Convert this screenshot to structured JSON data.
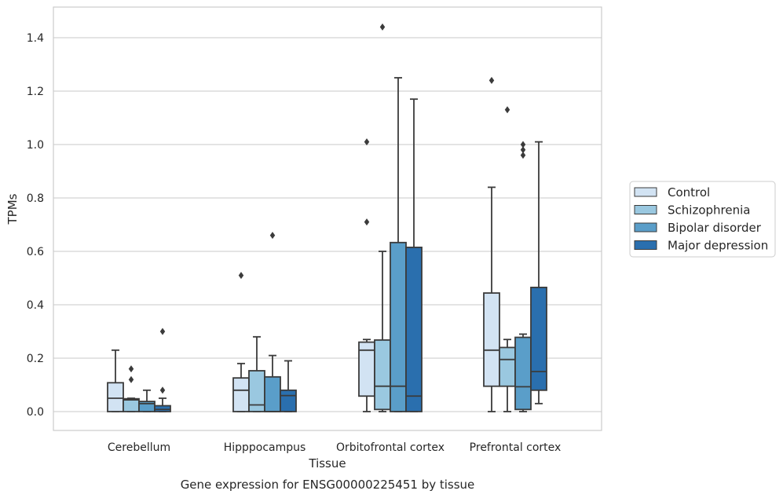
{
  "chart_data": {
    "type": "boxplot",
    "title": "",
    "xlabel": "Tissue",
    "ylabel": "TPMs",
    "caption": "Gene expression for ENSG00000225451 by tissue",
    "ylim": [
      -0.07,
      1.52
    ],
    "yticks": [
      "0.0",
      "0.2",
      "0.4",
      "0.6",
      "0.8",
      "1.0",
      "1.2",
      "1.4"
    ],
    "grid": "horizontal",
    "legend_position": "right",
    "categories": [
      "Cerebellum",
      "Hipppocampus",
      "Orbitofrontal cortex",
      "Prefrontal cortex"
    ],
    "series": [
      {
        "name": "Control",
        "color": "#d2e3f3",
        "boxes": [
          {
            "whislo": 0.0,
            "q1": 0.0,
            "med": 0.05,
            "q3": 0.108,
            "whishi": 0.23,
            "fliers": []
          },
          {
            "whislo": 0.0,
            "q1": 0.0,
            "med": 0.08,
            "q3": 0.126,
            "whishi": 0.18,
            "fliers": [
              0.51
            ]
          },
          {
            "whislo": 0.0,
            "q1": 0.058,
            "med": 0.23,
            "q3": 0.26,
            "whishi": 0.27,
            "fliers": [
              0.71,
              1.01
            ]
          },
          {
            "whislo": 0.0,
            "q1": 0.095,
            "med": 0.23,
            "q3": 0.444,
            "whishi": 0.84,
            "fliers": [
              1.24
            ]
          }
        ]
      },
      {
        "name": "Schizophrenia",
        "color": "#9ac8e0",
        "boxes": [
          {
            "whislo": 0.0,
            "q1": 0.0,
            "med": 0.044,
            "q3": 0.048,
            "whishi": 0.05,
            "fliers": [
              0.12,
              0.16
            ]
          },
          {
            "whislo": 0.0,
            "q1": 0.0,
            "med": 0.025,
            "q3": 0.153,
            "whishi": 0.28,
            "fliers": []
          },
          {
            "whislo": 0.0,
            "q1": 0.008,
            "med": 0.095,
            "q3": 0.268,
            "whishi": 0.6,
            "fliers": [
              1.44
            ]
          },
          {
            "whislo": 0.0,
            "q1": 0.095,
            "med": 0.195,
            "q3": 0.24,
            "whishi": 0.27,
            "fliers": [
              1.13
            ]
          }
        ]
      },
      {
        "name": "Bipolar disorder",
        "color": "#5a9ec9",
        "boxes": [
          {
            "whislo": 0.0,
            "q1": 0.0,
            "med": 0.03,
            "q3": 0.038,
            "whishi": 0.08,
            "fliers": []
          },
          {
            "whislo": 0.0,
            "q1": 0.0,
            "med": 0.0,
            "q3": 0.13,
            "whishi": 0.21,
            "fliers": [
              0.66
            ]
          },
          {
            "whislo": 0.0,
            "q1": 0.0,
            "med": 0.095,
            "q3": 0.633,
            "whishi": 1.25,
            "fliers": []
          },
          {
            "whislo": 0.0,
            "q1": 0.008,
            "med": 0.093,
            "q3": 0.278,
            "whishi": 0.29,
            "fliers": [
              0.96,
              0.98,
              1.0
            ]
          }
        ]
      },
      {
        "name": "Major depression",
        "color": "#2a6fae",
        "boxes": [
          {
            "whislo": 0.0,
            "q1": 0.0,
            "med": 0.008,
            "q3": 0.022,
            "whishi": 0.05,
            "fliers": [
              0.08,
              0.3
            ]
          },
          {
            "whislo": 0.0,
            "q1": 0.0,
            "med": 0.06,
            "q3": 0.08,
            "whishi": 0.19,
            "fliers": []
          },
          {
            "whislo": 0.0,
            "q1": 0.0,
            "med": 0.058,
            "q3": 0.615,
            "whishi": 1.17,
            "fliers": []
          },
          {
            "whislo": 0.03,
            "q1": 0.08,
            "med": 0.15,
            "q3": 0.465,
            "whishi": 1.01,
            "fliers": []
          }
        ]
      }
    ]
  }
}
